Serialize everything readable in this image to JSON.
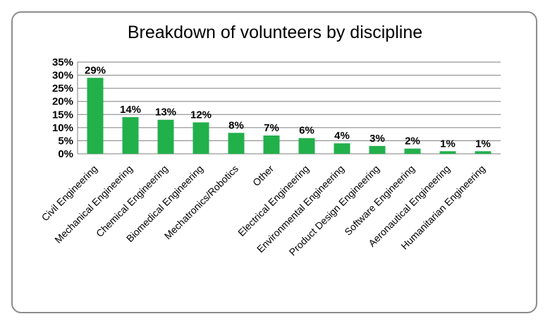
{
  "chart_data": {
    "type": "bar",
    "title": "Breakdown of volunteers by discipline",
    "xlabel": "",
    "ylabel": "",
    "categories": [
      "Civil Engineering",
      "Mechanical Engineering",
      "Chemical Engineering",
      "Biomedical Engineering",
      "Mechatronics/Robotics",
      "Other",
      "Electrical Engineering",
      "Environmental Engineering",
      "Product Design Engineering",
      "Software Engineering",
      "Aeronautical Engineering",
      "Humanitarian Engineering"
    ],
    "values": [
      29,
      14,
      13,
      12,
      8,
      7,
      6,
      4,
      3,
      2,
      1,
      1
    ],
    "value_labels": [
      "29%",
      "14%",
      "13%",
      "12%",
      "8%",
      "7%",
      "6%",
      "4%",
      "3%",
      "2%",
      "1%",
      "1%"
    ],
    "yticks": [
      "0%",
      "5%",
      "10%",
      "15%",
      "20%",
      "25%",
      "30%",
      "35%"
    ],
    "ylim": [
      0,
      35
    ],
    "grid": true,
    "bar_color": "#22b04b",
    "grid_color": "#7f7f7f"
  }
}
